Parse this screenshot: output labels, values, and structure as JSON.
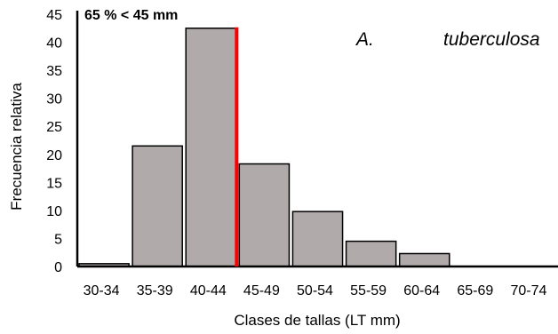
{
  "chart_data": {
    "type": "bar",
    "categories": [
      "30-34",
      "35-39",
      "40-44",
      "45-49",
      "50-54",
      "55-59",
      "60-64",
      "65-69",
      "70-74"
    ],
    "values": [
      0.5,
      21.5,
      42.5,
      18.3,
      9.8,
      4.5,
      2.3,
      0,
      0
    ],
    "title": "",
    "xlabel": "Clases de tallas (LT mm)",
    "ylabel": "Frecuencia relativa",
    "ylim": [
      0,
      45
    ],
    "yticks": [
      0,
      5,
      10,
      15,
      20,
      25,
      30,
      35,
      40,
      45
    ],
    "grid": false,
    "bar_color": "#b0aaab",
    "bar_edge_color": "#000000",
    "annotation": "65 % < 45 mm",
    "species_genus": "A.",
    "species_name": "tuberculosa",
    "threshold_category_boundary": "40-44|45-49",
    "threshold_color": "#ff0000"
  }
}
